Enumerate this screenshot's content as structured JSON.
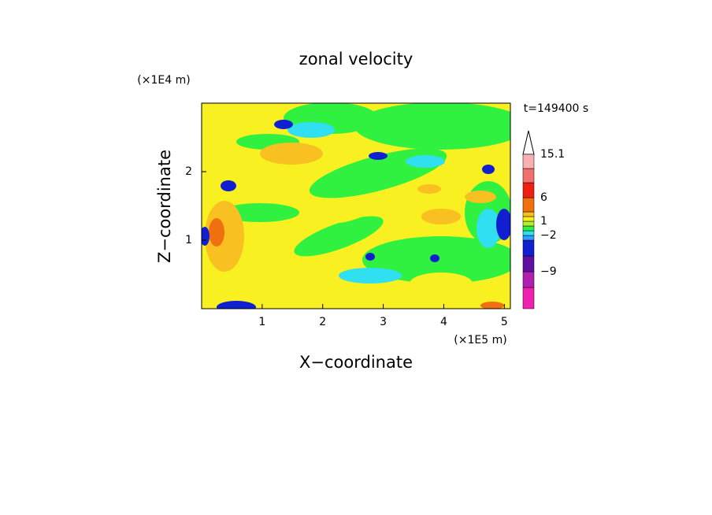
{
  "chart_data": {
    "type": "contour",
    "title": "zonal velocity",
    "x_label": "X−coordinate",
    "y_label": "Z−coordinate",
    "x_scale_label": "(×1E5 m)",
    "y_scale_label": "(×1E4 m)",
    "annotation": "t=149400 s",
    "xlim": [
      0,
      5.1
    ],
    "xticks": [
      1,
      2,
      3,
      4,
      5
    ],
    "ylim": [
      0,
      3
    ],
    "yticks": [
      1,
      2
    ],
    "colorbar": {
      "colors": [
        "#f020b0",
        "#b020b0",
        "#6010a0",
        "#1020d0",
        "#30a0ff",
        "#30e0f0",
        "#30f040",
        "#b0f030",
        "#f8f020",
        "#f8c020",
        "#f07010",
        "#f02010",
        "#f07070",
        "#f8b0b0"
      ],
      "levels": [
        null,
        null,
        {
          "value": -9,
          "label": "−9"
        },
        null,
        null,
        {
          "value": -2,
          "label": "−2"
        },
        null,
        null,
        1,
        null,
        null,
        6,
        null,
        null,
        15.1
      ]
    }
  }
}
